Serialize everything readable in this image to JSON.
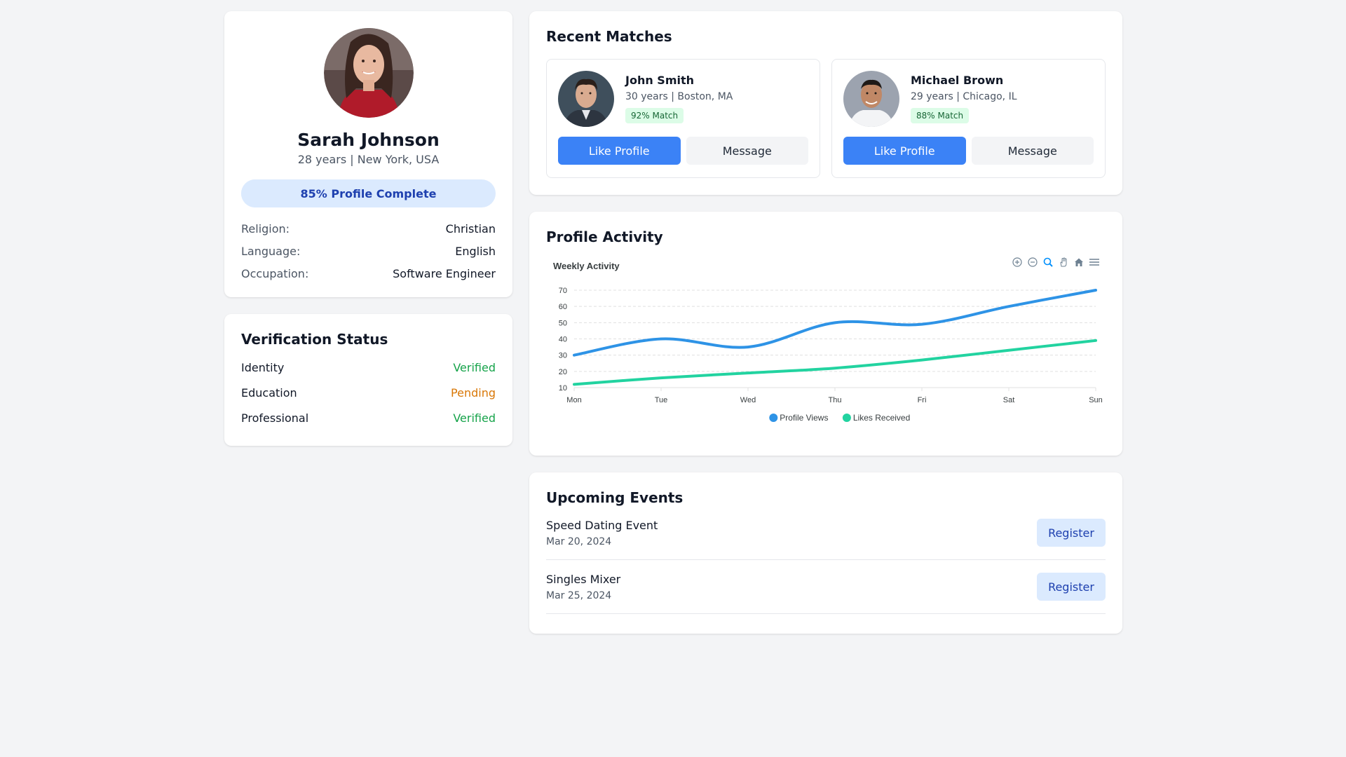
{
  "profile": {
    "name": "Sarah Johnson",
    "subtitle": "28 years | New York, USA",
    "completion_label": "85% Profile Complete",
    "completion": 0.85,
    "details": [
      {
        "label": "Religion:",
        "value": "Christian"
      },
      {
        "label": "Language:",
        "value": "English"
      },
      {
        "label": "Occupation:",
        "value": "Software Engineer"
      }
    ]
  },
  "verification": {
    "title": "Verification Status",
    "items": [
      {
        "label": "Identity",
        "status": "Verified"
      },
      {
        "label": "Education",
        "status": "Pending"
      },
      {
        "label": "Professional",
        "status": "Verified"
      }
    ]
  },
  "matches": {
    "title": "Recent Matches",
    "items": [
      {
        "name": "John Smith",
        "subtitle": "30 years | Boston, MA",
        "badge": "92% Match",
        "like_label": "Like Profile",
        "message_label": "Message"
      },
      {
        "name": "Michael Brown",
        "subtitle": "29 years | Chicago, IL",
        "badge": "88% Match",
        "like_label": "Like Profile",
        "message_label": "Message"
      }
    ]
  },
  "activity": {
    "title": "Profile Activity"
  },
  "chart_data": {
    "type": "line",
    "title": "Weekly Activity",
    "categories": [
      "Mon",
      "Tue",
      "Wed",
      "Thu",
      "Fri",
      "Sat",
      "Sun"
    ],
    "series": [
      {
        "name": "Profile Views",
        "values": [
          30,
          40,
          35,
          50,
          49,
          60,
          70
        ],
        "color": "#2e93e6"
      },
      {
        "name": "Likes Received",
        "values": [
          12,
          16,
          19,
          22,
          27,
          33,
          39
        ],
        "color": "#22d3a0"
      }
    ],
    "yticks": [
      10,
      20,
      30,
      40,
      50,
      60,
      70
    ],
    "ylim": [
      10,
      70
    ],
    "grid": true,
    "legend_position": "bottom-center",
    "toolbar_icons": [
      "zoom-in-icon",
      "zoom-out-icon",
      "zoom-selection-icon",
      "pan-icon",
      "home-icon",
      "menu-icon"
    ]
  },
  "events": {
    "title": "Upcoming Events",
    "items": [
      {
        "title": "Speed Dating Event",
        "date": "Mar 20, 2024",
        "register_label": "Register"
      },
      {
        "title": "Singles Mixer",
        "date": "Mar 25, 2024",
        "register_label": "Register"
      }
    ]
  },
  "colors": {
    "primary": "#3b82f6",
    "verified": "#16a34a",
    "pending": "#d97706"
  }
}
